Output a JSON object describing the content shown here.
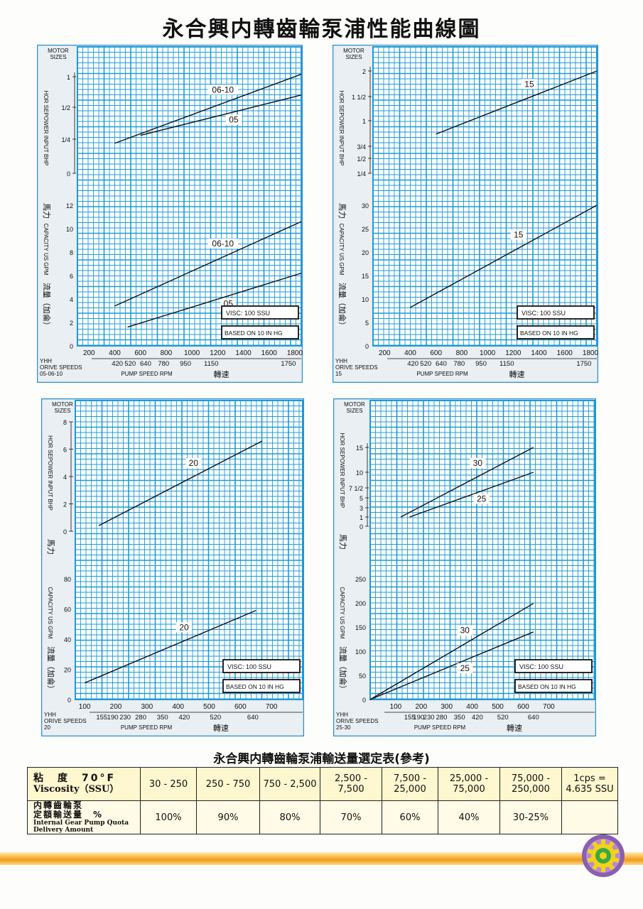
{
  "title": "永合興内轉齒輪泵浦性能曲線圖",
  "common": {
    "motor_sizes_line1": "MOTOR",
    "motor_sizes_line2": "SIZES",
    "hp_axis_label": "HOR SEPOWER INPUT BHP",
    "hp_axis_cn": "馬力",
    "cap_axis_label": "CAPACITY US GPM",
    "cap_axis_cn": "流量（加侖）",
    "visc_note": "VISC:  100  SSU",
    "based_note": "BASED ON 10 IN HG",
    "pump_speed_label": "PUMP SPEED RPM",
    "speed_cn": "轉速",
    "yhh": "YHH",
    "drive_speeds": "ORIVE SPEEDS"
  },
  "chart_data": [
    {
      "type": "line",
      "model": "05-06-10",
      "x_ticks": [
        "200",
        "400",
        "600",
        "800",
        "1000",
        "1200",
        "1400",
        "1600",
        "1800"
      ],
      "drive_speed_ticks": [
        "420",
        "520",
        "640",
        "780",
        "950",
        "1150",
        "1750"
      ],
      "xlim": [
        110,
        1850
      ],
      "hp": {
        "yticks": [
          "1",
          "1/2",
          "1/4",
          "0"
        ],
        "series": [
          {
            "name": "06-10",
            "x": [
              400,
              1850
            ],
            "y": [
              0.22,
              1.04
            ]
          },
          {
            "name": "05",
            "x": [
              600,
              1850
            ],
            "y": [
              0.28,
              0.7
            ]
          }
        ]
      },
      "capacity": {
        "ylim": [
          0,
          12
        ],
        "yticks": [
          "12",
          "10",
          "8",
          "6",
          "4",
          "2",
          "0"
        ],
        "series": [
          {
            "name": "06-10",
            "x": [
              400,
              1850
            ],
            "y": [
              3.4,
              10.6
            ]
          },
          {
            "name": "05",
            "x": [
              500,
              1850
            ],
            "y": [
              1.6,
              6.2
            ]
          }
        ]
      }
    },
    {
      "type": "line",
      "model": "15",
      "x_ticks": [
        "200",
        "400",
        "600",
        "800",
        "1000",
        "1200",
        "1400",
        "1600",
        "1800"
      ],
      "drive_speed_ticks": [
        "420",
        "520",
        "640",
        "780",
        "950",
        "1150",
        "1750"
      ],
      "xlim": [
        110,
        1850
      ],
      "hp": {
        "yticks": [
          "2",
          "1 1/2",
          "1",
          "3/4",
          "1/2",
          "1/4"
        ],
        "series": [
          {
            "name": "15",
            "x": [
              600,
              1850
            ],
            "y": [
              0.87,
              2.0
            ]
          }
        ]
      },
      "capacity": {
        "ylim": [
          0,
          30
        ],
        "yticks": [
          "30",
          "25",
          "20",
          "15",
          "10",
          "5",
          "0"
        ],
        "series": [
          {
            "name": "15",
            "x": [
              400,
              1850
            ],
            "y": [
              8.2,
              30
            ]
          }
        ]
      }
    },
    {
      "type": "line",
      "model": "20",
      "x_ticks": [
        "100",
        "200",
        "300",
        "400",
        "500",
        "600",
        "700"
      ],
      "drive_speed_ticks": [
        "155",
        "190",
        "230",
        "280",
        "350",
        "420",
        "520",
        "640"
      ],
      "xlim": [
        70,
        800
      ],
      "hp": {
        "ylim": [
          0,
          8
        ],
        "yticks": [
          "8",
          "6",
          "4",
          "2",
          "0"
        ],
        "series": [
          {
            "name": "20",
            "x": [
              145,
              670
            ],
            "y": [
              0.4,
              6.6
            ]
          }
        ]
      },
      "capacity": {
        "ylim": [
          0,
          80
        ],
        "yticks": [
          "80",
          "60",
          "40",
          "20",
          "0"
        ],
        "series": [
          {
            "name": "20",
            "x": [
              100,
              650
            ],
            "y": [
              11,
              59
            ]
          }
        ]
      }
    },
    {
      "type": "line",
      "model": "25-30",
      "x_ticks": [
        "100",
        "200",
        "300",
        "400",
        "500",
        "600",
        "700"
      ],
      "drive_speed_ticks": [
        "155",
        "190",
        "230",
        "280",
        "350",
        "420",
        "520",
        "640"
      ],
      "xlim": [
        0,
        880
      ],
      "hp": {
        "ylim": [
          0,
          15
        ],
        "yticks": [
          "15",
          "10",
          "7 1/2",
          "5",
          "3",
          "1",
          "0"
        ],
        "series": [
          {
            "name": "30",
            "x": [
              120,
              640
            ],
            "y": [
              1,
              15
            ]
          },
          {
            "name": "25",
            "x": [
              155,
              640
            ],
            "y": [
              1,
              10
            ]
          }
        ]
      },
      "capacity": {
        "ylim": [
          0,
          250
        ],
        "yticks": [
          "250",
          "200",
          "150",
          "100",
          "50",
          "0"
        ],
        "series": [
          {
            "name": "30",
            "x": [
              0,
              640
            ],
            "y": [
              0,
              199
            ]
          },
          {
            "name": "25",
            "x": [
              0,
              640
            ],
            "y": [
              0,
              140
            ]
          }
        ]
      }
    }
  ],
  "table": {
    "title": "永合興内轉齒輪泵浦輸送量選定表(參考)",
    "row1_label_cn": "粘　度　70°F",
    "row1_label_en": "Viscosity（SSU）",
    "row2_label_cn1": "内轉齒輪泵",
    "row2_label_cn2": "定額輸送量　%",
    "row2_label_en1": "Internal Gear Pump Quota",
    "row2_label_en2": "Delivery Amount",
    "viscosity": [
      [
        "30 - 250"
      ],
      [
        "250 - 750"
      ],
      [
        "750 - 2,500"
      ],
      [
        "2,500 -",
        "7,500"
      ],
      [
        "7,500 -",
        "25,000"
      ],
      [
        "25,000 -",
        "75,000"
      ],
      [
        "75,000 -",
        "250,000"
      ],
      [
        "1cps =",
        "4.635 SSU"
      ]
    ],
    "delivery": [
      "100%",
      "90%",
      "80%",
      "70%",
      "60%",
      "40%",
      "30-25%",
      ""
    ]
  },
  "colors": {
    "grid_bg": "#ffffff",
    "grid_line": "#1c9ad8",
    "panel_bg": "#e8eef2",
    "band": "#f39a1a"
  }
}
